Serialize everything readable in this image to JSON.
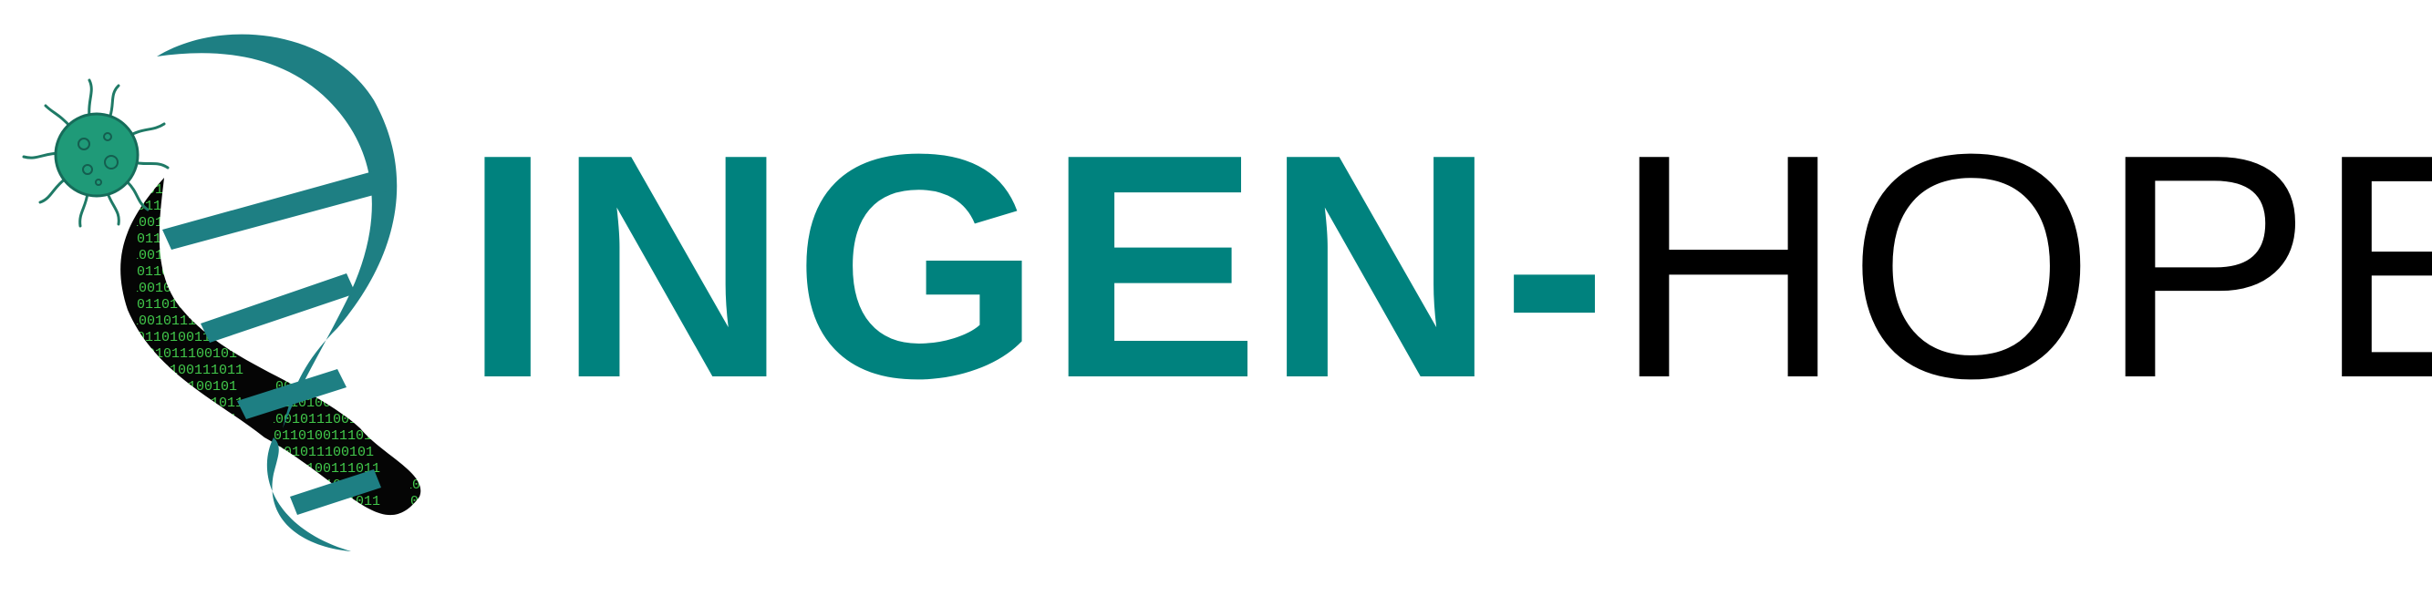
{
  "logo": {
    "name_part_1": "INGEN",
    "hyphen": "-",
    "name_part_2": "HOPE",
    "colors": {
      "brand_teal": "#00827E",
      "helix_teal": "#1E7F83",
      "cell_green": "#1F9A78",
      "binary_green": "#41C94A",
      "text_black": "#000000",
      "background": "#FFFFFF"
    },
    "emblem_icons": [
      "virus-cell-icon",
      "dna-helix-icon",
      "binary-code-pattern"
    ]
  }
}
